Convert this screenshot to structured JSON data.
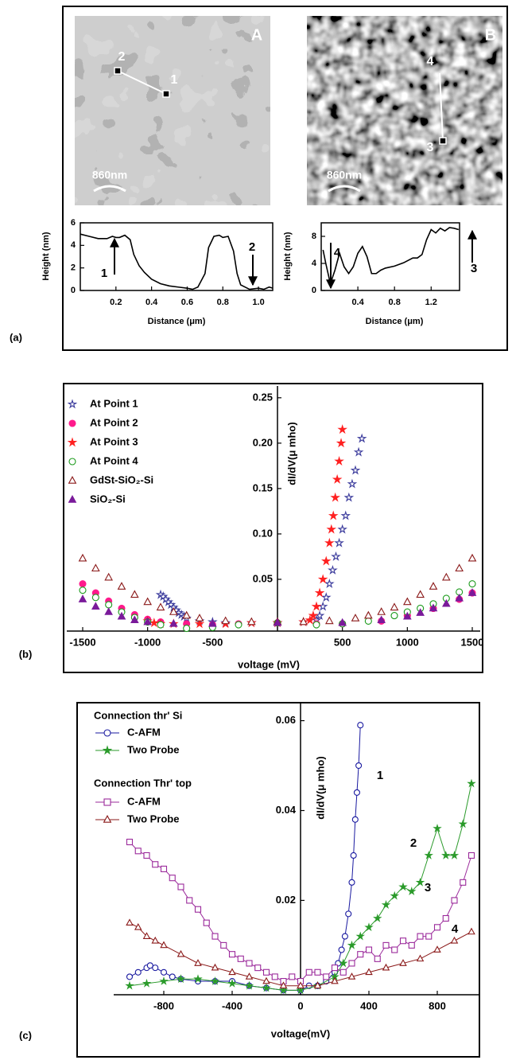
{
  "chart_data": [
    {
      "type": "line",
      "panel": "(a)",
      "image_label": "A",
      "scale_bar": "860nm",
      "image_points": [
        "2",
        "1"
      ],
      "xlabel": "Distance (μm)",
      "ylabel": "Height (nm)",
      "color": "#000000",
      "x": [
        0,
        0.05,
        0.1,
        0.15,
        0.18,
        0.2,
        0.22,
        0.25,
        0.28,
        0.3,
        0.33,
        0.36,
        0.4,
        0.45,
        0.5,
        0.55,
        0.6,
        0.63,
        0.66,
        0.7,
        0.72,
        0.75,
        0.78,
        0.8,
        0.83,
        0.86,
        0.88,
        0.9,
        0.95,
        1.0,
        1.03,
        1.06,
        1.08
      ],
      "values": [
        5.0,
        4.8,
        4.6,
        4.6,
        4.8,
        4.7,
        4.7,
        4.9,
        4.5,
        3.2,
        2.2,
        1.6,
        1.0,
        0.6,
        0.4,
        0.3,
        0.2,
        0.1,
        0.3,
        1.5,
        3.8,
        4.8,
        4.9,
        4.7,
        4.8,
        3.5,
        1.5,
        0.5,
        0.1,
        0.2,
        0.1,
        0.3,
        0.2
      ],
      "xlim": [
        0,
        1.08
      ],
      "ylim": [
        0,
        6
      ],
      "xticks": [
        0.2,
        0.4,
        0.6,
        0.8,
        {
          "value": 1,
          "label": "1.0"
        }
      ],
      "yticks": [
        0,
        2,
        4,
        6
      ],
      "annotations": [
        "1",
        "2"
      ]
    },
    {
      "type": "line",
      "image_label": "B",
      "scale_bar": "860nm",
      "image_points": [
        "4",
        "3"
      ],
      "xlabel": "Distance (μm)",
      "ylabel": "Height (nm)",
      "color": "#000000",
      "x": [
        0.02,
        0.05,
        0.1,
        0.15,
        0.2,
        0.25,
        0.3,
        0.35,
        0.4,
        0.45,
        0.5,
        0.55,
        0.6,
        0.65,
        0.7,
        0.8,
        0.9,
        1.0,
        1.05,
        1.1,
        1.15,
        1.2,
        1.25,
        1.3,
        1.35,
        1.4,
        1.45,
        1.5
      ],
      "values": [
        6,
        4,
        1,
        3,
        5.5,
        3.5,
        2.5,
        3.5,
        5.5,
        6.5,
        5,
        2.5,
        2.5,
        3,
        3.3,
        3.6,
        4.1,
        4.8,
        4.8,
        5.3,
        7.5,
        9,
        8.5,
        9.2,
        8.8,
        9.3,
        9.2,
        9
      ],
      "xlim": [
        0,
        1.51
      ],
      "ylim": [
        0,
        10
      ],
      "xticks": [
        0.4,
        0.8,
        1.2
      ],
      "yticks": [
        0,
        4,
        8
      ],
      "annotations": [
        "4",
        "3"
      ]
    },
    {
      "type": "scatter",
      "panel": "(b)",
      "xlabel": "voltage (mV)",
      "ylabel": "dI/dV(μ mho)",
      "xlim": [
        -1500,
        1500
      ],
      "ylim": [
        -0.007,
        0.263
      ],
      "xticks": [
        -1500,
        -1000,
        -500,
        500,
        1000,
        1500
      ],
      "yticks": [
        0.05,
        {
          "value": 0.1,
          "label": "0.10"
        },
        0.15,
        {
          "value": 0.2,
          "label": "0.20"
        },
        0.25
      ],
      "series": [
        {
          "name": "At Point 1",
          "color": "#3b3b9c",
          "marker": "star",
          "filled": false,
          "x": [
            -900,
            -880,
            -860,
            -840,
            -820,
            -800,
            -780,
            -760,
            -740,
            -720,
            -700,
            -600,
            -500,
            -400,
            -200,
            0,
            200,
            300,
            325,
            350,
            375,
            400,
            425,
            450,
            475,
            500,
            525,
            550,
            575,
            600,
            625,
            650
          ],
          "values": [
            0.033,
            0.031,
            0.028,
            0.025,
            0.022,
            0.019,
            0.016,
            0.013,
            0.011,
            0.009,
            0.007,
            0.004,
            0.003,
            0.002,
            0.002,
            0.002,
            0.003,
            0.005,
            0.01,
            0.02,
            0.03,
            0.045,
            0.06,
            0.075,
            0.09,
            0.105,
            0.12,
            0.14,
            0.155,
            0.17,
            0.19,
            0.205
          ]
        },
        {
          "name": "At Point 2",
          "color": "#ff1a8c",
          "marker": "circle",
          "filled": true,
          "x": [
            -1500,
            -1400,
            -1300,
            -1200,
            -1100,
            -1000,
            -900,
            -700,
            -500,
            -300,
            0,
            300,
            500,
            800,
            1000,
            1200,
            1400,
            1500
          ],
          "values": [
            0.045,
            0.035,
            0.026,
            0.018,
            0.011,
            0.006,
            0.003,
            0.001,
            0,
            0.001,
            0.002,
            0.001,
            0.001,
            0.004,
            0.01,
            0.018,
            0.028,
            0.035
          ]
        },
        {
          "name": "At Point 3",
          "color": "#ff2020",
          "marker": "star",
          "filled": true,
          "x": [
            -1000,
            -950,
            -900,
            -800,
            -600,
            -400,
            -200,
            0,
            200,
            250,
            275,
            300,
            325,
            350,
            375,
            400,
            415,
            430,
            445,
            460,
            475,
            490,
            500
          ],
          "values": [
            0.004,
            0.002,
            0.001,
            0.001,
            0.001,
            0.001,
            0.002,
            0.002,
            0.003,
            0.005,
            0.01,
            0.02,
            0.035,
            0.05,
            0.07,
            0.09,
            0.105,
            0.12,
            0.14,
            0.16,
            0.18,
            0.2,
            0.215
          ]
        },
        {
          "name": "At Point 4",
          "color": "#1a9a1a",
          "marker": "circle",
          "filled": false,
          "x": [
            -1500,
            -1400,
            -1300,
            -1200,
            -1100,
            -1000,
            -900,
            -700,
            -500,
            -300,
            0,
            300,
            500,
            700,
            900,
            1000,
            1100,
            1200,
            1300,
            1400,
            1500
          ],
          "values": [
            0.038,
            0.03,
            0.022,
            0.014,
            0.008,
            0.003,
            0,
            -0.004,
            -0.003,
            0,
            0.002,
            0,
            0.001,
            0.004,
            0.01,
            0.014,
            0.018,
            0.023,
            0.029,
            0.036,
            0.045
          ]
        },
        {
          "name": "GdSt-SiO₂-Si",
          "color": "#8b1a1a",
          "marker": "triangle",
          "filled": false,
          "x": [
            -1500,
            -1400,
            -1300,
            -1200,
            -1100,
            -1000,
            -900,
            -800,
            -700,
            -600,
            -400,
            -200,
            0,
            200,
            400,
            600,
            700,
            800,
            900,
            1000,
            1100,
            1200,
            1300,
            1400,
            1500
          ],
          "values": [
            0.073,
            0.062,
            0.052,
            0.042,
            0.033,
            0.025,
            0.019,
            0.014,
            0.01,
            0.007,
            0.004,
            0.003,
            0.003,
            0.003,
            0.004,
            0.007,
            0.01,
            0.014,
            0.019,
            0.025,
            0.033,
            0.042,
            0.052,
            0.062,
            0.073
          ]
        },
        {
          "name": "SiO₂-Si",
          "color": "#7a1a9a",
          "marker": "triangle",
          "filled": true,
          "x": [
            -1500,
            -1400,
            -1300,
            -1200,
            -1100,
            -1000,
            -800,
            -500,
            0,
            500,
            800,
            1000,
            1100,
            1200,
            1300,
            1400,
            1500
          ],
          "values": [
            0.028,
            0.02,
            0.014,
            0.009,
            0.005,
            0.003,
            0.001,
            0.001,
            0.002,
            0.002,
            0.005,
            0.009,
            0.013,
            0.018,
            0.023,
            0.029,
            0.035
          ]
        }
      ]
    },
    {
      "type": "line",
      "panel": "(c)",
      "xlabel": "voltage(mV)",
      "ylabel": "dI/dV(μ mho)",
      "legend_groups": [
        "Connection thr' Si",
        "Connection Thr' top"
      ],
      "xlim": [
        -1000,
        1000
      ],
      "ylim": [
        -0.001,
        0.064
      ],
      "xticks": [
        -800,
        -400,
        0,
        400,
        800
      ],
      "yticks": [
        0.02,
        0.04,
        0.06
      ],
      "series": [
        {
          "name": "C-AFM",
          "color": "#1a1aa0",
          "marker": "circle",
          "filled": false,
          "x": [
            -1000,
            -950,
            -900,
            -880,
            -850,
            -800,
            -750,
            -700,
            -600,
            -500,
            -400,
            -300,
            -200,
            -100,
            0,
            50,
            100,
            150,
            200,
            220,
            240,
            260,
            280,
            300,
            310,
            320,
            330,
            340,
            350
          ],
          "values": [
            0.003,
            0.004,
            0.005,
            0.0055,
            0.005,
            0.004,
            0.003,
            0.0025,
            0.002,
            0.002,
            0.002,
            0.001,
            0.0005,
            0,
            0,
            0.001,
            0.001,
            0.002,
            0.004,
            0.006,
            0.009,
            0.012,
            0.017,
            0.024,
            0.03,
            0.038,
            0.044,
            0.05,
            0.059
          ]
        },
        {
          "name": "Two Probe",
          "color": "#2a9a2a",
          "marker": "star",
          "filled": true,
          "x": [
            -1000,
            -900,
            -800,
            -700,
            -600,
            -500,
            -400,
            -300,
            -200,
            -100,
            0,
            100,
            200,
            250,
            300,
            350,
            400,
            450,
            500,
            550,
            600,
            650,
            700,
            750,
            800,
            850,
            900,
            950,
            1000
          ],
          "values": [
            0.001,
            0.0015,
            0.002,
            0.0025,
            0.0025,
            0.002,
            0.0015,
            0.001,
            0.0005,
            0,
            0,
            0.001,
            0.003,
            0.006,
            0.01,
            0.012,
            0.014,
            0.016,
            0.019,
            0.021,
            0.023,
            0.022,
            0.024,
            0.03,
            0.036,
            0.03,
            0.03,
            0.037,
            0.046
          ]
        },
        {
          "name": "C-AFM",
          "color": "#9b2a9b",
          "marker": "square",
          "filled": false,
          "x": [
            -1000,
            -950,
            -900,
            -850,
            -800,
            -750,
            -700,
            -650,
            -600,
            -550,
            -500,
            -450,
            -400,
            -350,
            -300,
            -250,
            -200,
            -150,
            -100,
            -50,
            0,
            50,
            100,
            150,
            200,
            250,
            300,
            350,
            400,
            450,
            500,
            550,
            600,
            650,
            700,
            750,
            800,
            850,
            900,
            950,
            1000
          ],
          "values": [
            0.033,
            0.031,
            0.03,
            0.028,
            0.027,
            0.025,
            0.023,
            0.02,
            0.018,
            0.015,
            0.012,
            0.01,
            0.008,
            0.007,
            0.006,
            0.005,
            0.004,
            0.003,
            0.002,
            0.003,
            0.002,
            0.004,
            0.004,
            0.003,
            0.005,
            0.004,
            0.006,
            0.008,
            0.009,
            0.007,
            0.01,
            0.009,
            0.011,
            0.01,
            0.012,
            0.012,
            0.014,
            0.016,
            0.02,
            0.024,
            0.03
          ]
        },
        {
          "name": "Two Probe",
          "color": "#8b1a1a",
          "marker": "triangle",
          "filled": false,
          "x": [
            -1000,
            -950,
            -900,
            -850,
            -800,
            -700,
            -600,
            -500,
            -400,
            -300,
            -200,
            -100,
            0,
            100,
            200,
            300,
            400,
            500,
            600,
            700,
            800,
            900,
            1000
          ],
          "values": [
            0.015,
            0.014,
            0.012,
            0.011,
            0.01,
            0.008,
            0.006,
            0.005,
            0.004,
            0.003,
            0.002,
            0.001,
            0.001,
            0.001,
            0.002,
            0.003,
            0.004,
            0.005,
            0.006,
            0.007,
            0.009,
            0.011,
            0.013
          ]
        }
      ],
      "annotations": [
        "1",
        "2",
        "3",
        "4"
      ]
    }
  ]
}
